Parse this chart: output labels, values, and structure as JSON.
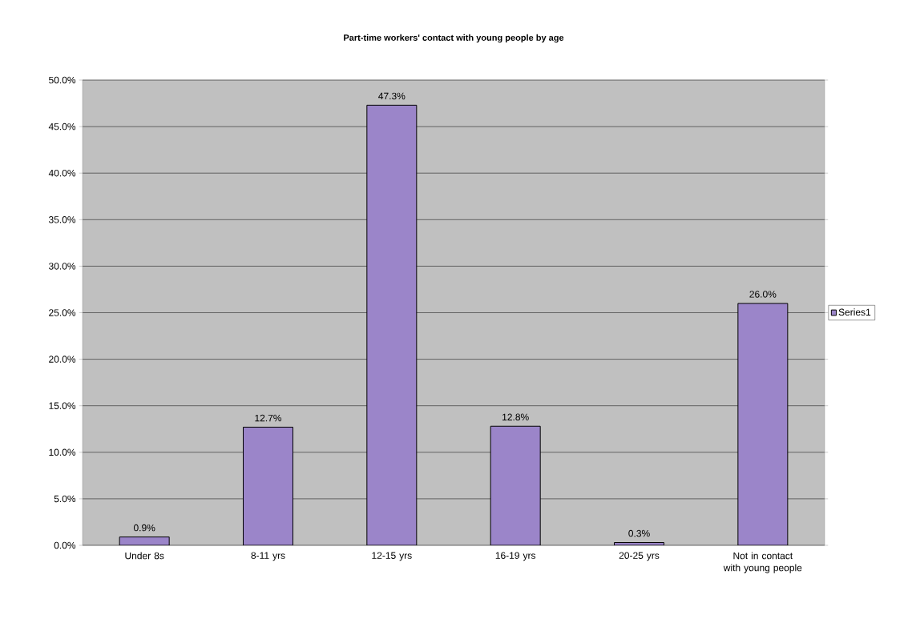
{
  "chart_data": {
    "type": "bar",
    "title": "Part-time workers' contact with young people by age",
    "categories": [
      "Under 8s",
      "8-11 yrs",
      "12-15 yrs",
      "16-19 yrs",
      "20-25 yrs",
      "Not in contact with young people"
    ],
    "series": [
      {
        "name": "Series1",
        "color": "#9b85c9",
        "values": [
          0.9,
          12.7,
          47.3,
          12.8,
          0.3,
          26.0
        ],
        "value_labels": [
          "0.9%",
          "12.7%",
          "47.3%",
          "12.8%",
          "0.3%",
          "26.0%"
        ]
      }
    ],
    "ylim": [
      0,
      50
    ],
    "yticks": [
      {
        "value": 0,
        "label": "0.0%"
      },
      {
        "value": 5,
        "label": "5.0%"
      },
      {
        "value": 10,
        "label": "10.0%"
      },
      {
        "value": 15,
        "label": "15.0%"
      },
      {
        "value": 20,
        "label": "20.0%"
      },
      {
        "value": 25,
        "label": "25.0%"
      },
      {
        "value": 30,
        "label": "30.0%"
      },
      {
        "value": 35,
        "label": "35.0%"
      },
      {
        "value": 40,
        "label": "40.0%"
      },
      {
        "value": 45,
        "label": "45.0%"
      },
      {
        "value": 50,
        "label": "50.0%"
      }
    ],
    "grid": "y",
    "legend": "right"
  }
}
